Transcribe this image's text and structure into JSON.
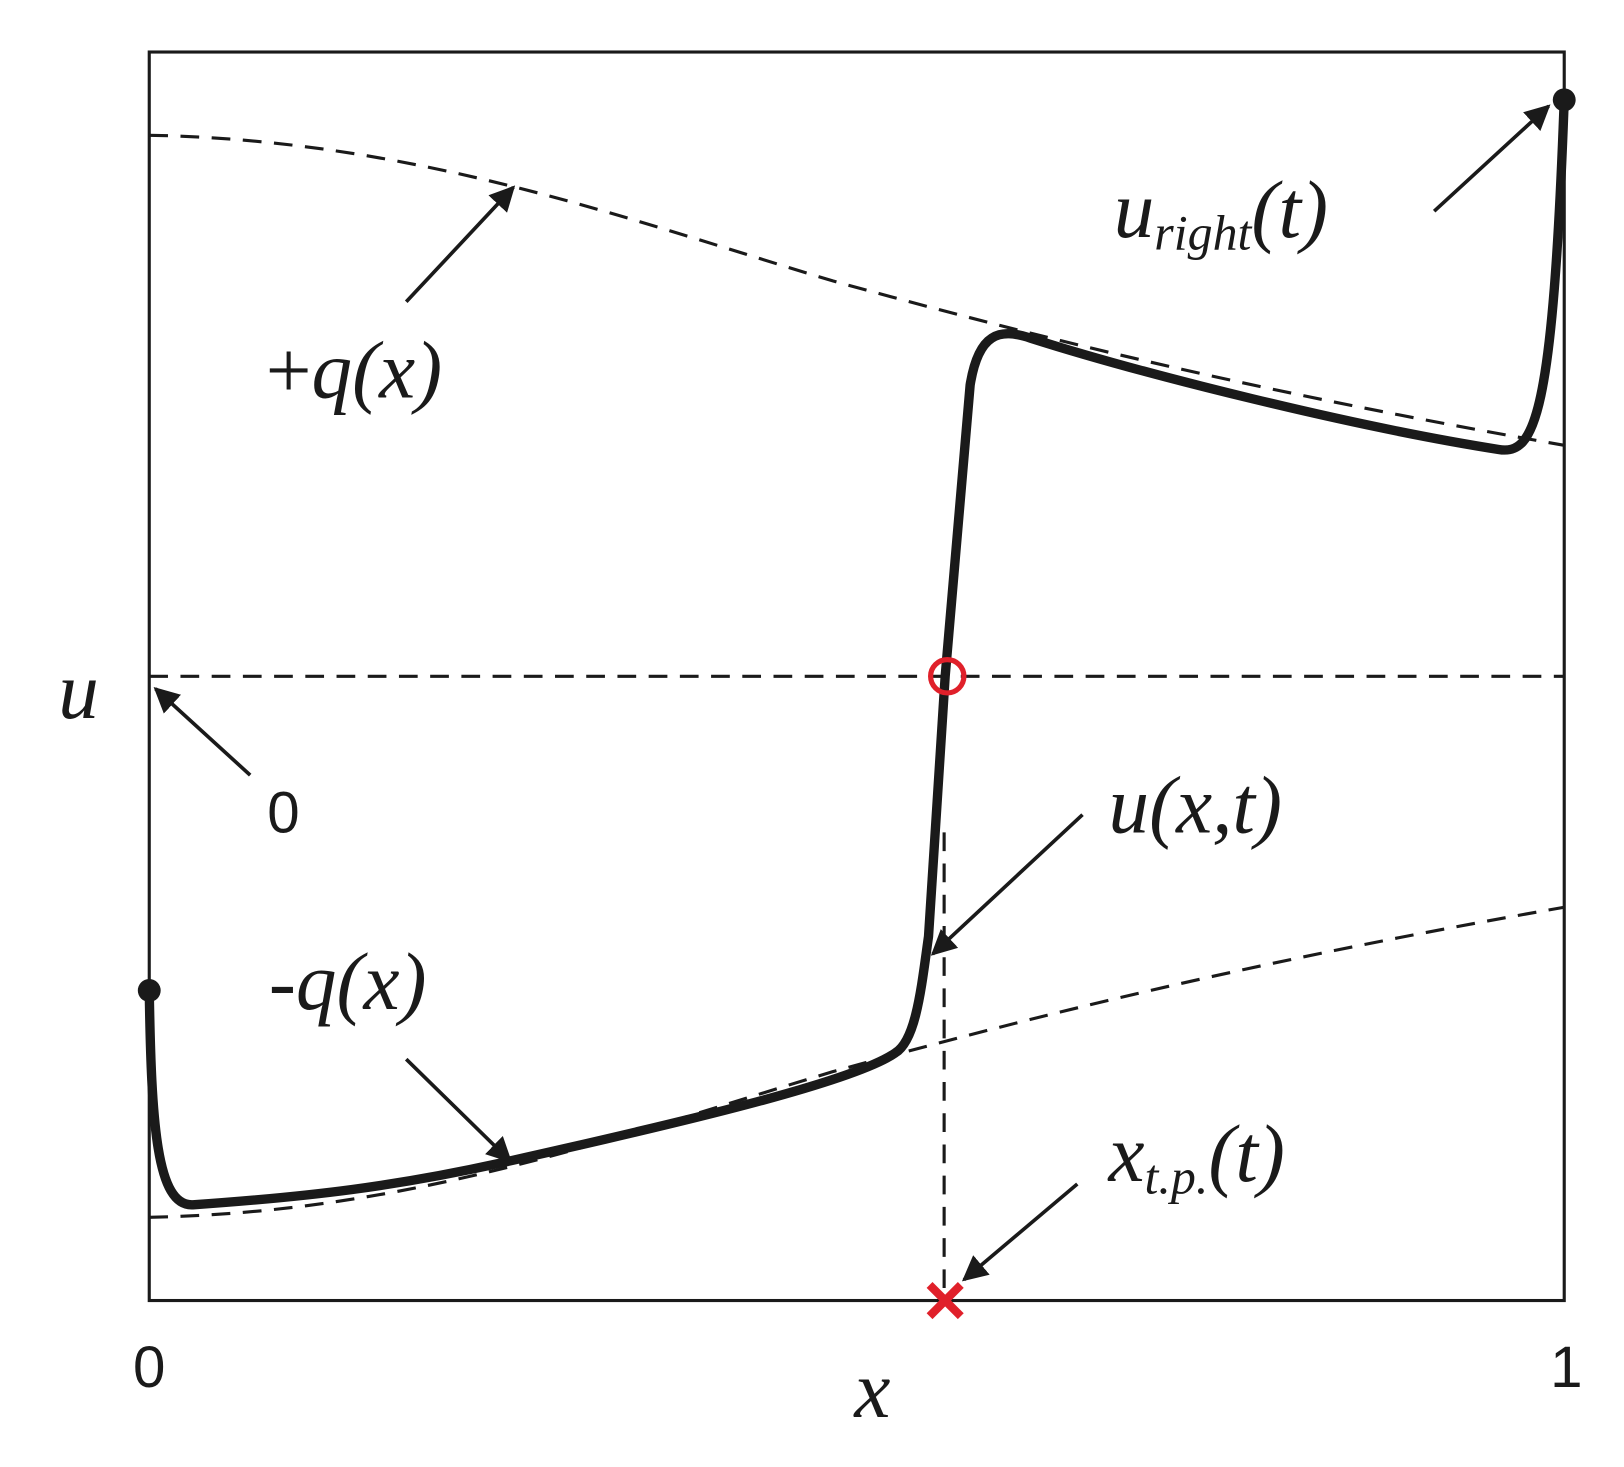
{
  "axes": {
    "y_label": "u",
    "x_label": "x",
    "x_ticks": [
      "0",
      "1"
    ]
  },
  "annotations": {
    "zero": "0",
    "plus_q": {
      "sign": "+",
      "text": "q(x)"
    },
    "minus_q": {
      "sign": "-",
      "text": "q(x)"
    },
    "u_right": {
      "base": "u",
      "sub": "right",
      "tail": "(t)"
    },
    "u_xt": "u(x,t)",
    "x_tp": {
      "base": "x",
      "sub": "t.p.",
      "tail": "(t)"
    }
  }
}
